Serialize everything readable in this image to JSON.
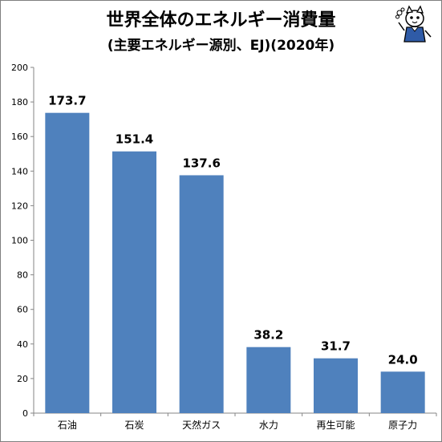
{
  "chart_data": {
    "type": "bar",
    "title": "世界全体のエネルギー消費量",
    "subtitle": "(主要エネルギー源別、EJ)(2020年)",
    "categories": [
      "石油",
      "石炭",
      "天然ガス",
      "水力",
      "再生可能",
      "原子力"
    ],
    "values": [
      173.7,
      151.4,
      137.6,
      38.2,
      31.7,
      24.0
    ],
    "data_labels": [
      "173.7",
      "151.4",
      "137.6",
      "38.2",
      "31.7",
      "24.0"
    ],
    "ylim": [
      0,
      200
    ],
    "yticks": [
      "0",
      "20",
      "40",
      "60",
      "80",
      "100",
      "120",
      "140",
      "160",
      "180",
      "200"
    ],
    "xlabel": "",
    "ylabel": "",
    "grid": false,
    "bar_color": "#4f81bd"
  }
}
